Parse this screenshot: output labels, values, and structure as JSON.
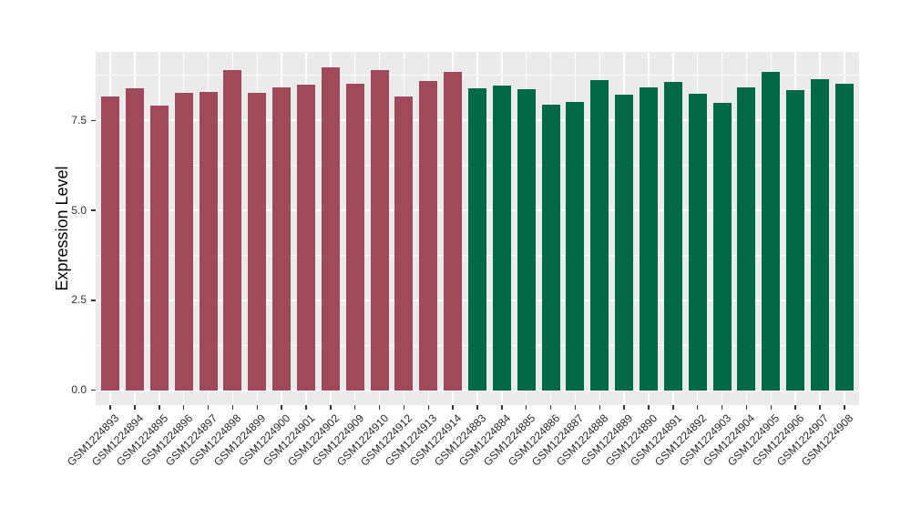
{
  "style": {
    "figure_background": "#ffffff",
    "panel_background": "#ebebeb",
    "grid_color": "#ffffff",
    "tick_color": "#333333",
    "axis_text_color": "#303030",
    "axis_title_color": "#000000",
    "bar_color_left_group": "#a04a59",
    "bar_color_right_group": "#016946"
  },
  "chart_data": {
    "type": "bar",
    "title": "",
    "xlabel": "",
    "ylabel": "Expression Level",
    "legend": "none",
    "grid": "major+minor horizontal, major vertical (white on gray panel)",
    "y_axis": {
      "tick_values": [
        0,
        2.5,
        5,
        7.5
      ],
      "tick_labels": [
        "0.0",
        "2.5",
        "5.0",
        "7.5"
      ],
      "minor_tick_values": [
        1.25,
        3.75,
        6.25,
        8.75
      ],
      "range_bottom": -0.42,
      "range_top": 9.4
    },
    "series": [
      {
        "color": "#a04a59",
        "bars": [
          {
            "label": "GSM1224893",
            "value": 8.17
          },
          {
            "label": "GSM1224894",
            "value": 8.4
          },
          {
            "label": "GSM1224895",
            "value": 7.91
          },
          {
            "label": "GSM1224896",
            "value": 8.27
          },
          {
            "label": "GSM1224897",
            "value": 8.3
          },
          {
            "label": "GSM1224898",
            "value": 8.89
          },
          {
            "label": "GSM1224899",
            "value": 8.26
          },
          {
            "label": "GSM1224900",
            "value": 8.41
          },
          {
            "label": "GSM1224901",
            "value": 8.5
          },
          {
            "label": "GSM1224902",
            "value": 8.97
          },
          {
            "label": "GSM1224909",
            "value": 8.53
          },
          {
            "label": "GSM1224910",
            "value": 8.89
          },
          {
            "label": "GSM1224912",
            "value": 8.16
          },
          {
            "label": "GSM1224913",
            "value": 8.6
          },
          {
            "label": "GSM1224914",
            "value": 8.85
          }
        ]
      },
      {
        "color": "#016946",
        "bars": [
          {
            "label": "GSM1224883",
            "value": 8.39
          },
          {
            "label": "GSM1224884",
            "value": 8.46
          },
          {
            "label": "GSM1224885",
            "value": 8.37
          },
          {
            "label": "GSM1224886",
            "value": 7.93
          },
          {
            "label": "GSM1224887",
            "value": 8.01
          },
          {
            "label": "GSM1224888",
            "value": 8.62
          },
          {
            "label": "GSM1224889",
            "value": 8.21
          },
          {
            "label": "GSM1224890",
            "value": 8.43
          },
          {
            "label": "GSM1224891",
            "value": 8.57
          },
          {
            "label": "GSM1224892",
            "value": 8.24
          },
          {
            "label": "GSM1224903",
            "value": 8.0
          },
          {
            "label": "GSM1224904",
            "value": 8.41
          },
          {
            "label": "GSM1224905",
            "value": 8.85
          },
          {
            "label": "GSM1224906",
            "value": 8.33
          },
          {
            "label": "GSM1224907",
            "value": 8.64
          },
          {
            "label": "GSM1224908",
            "value": 8.52
          }
        ]
      }
    ]
  }
}
